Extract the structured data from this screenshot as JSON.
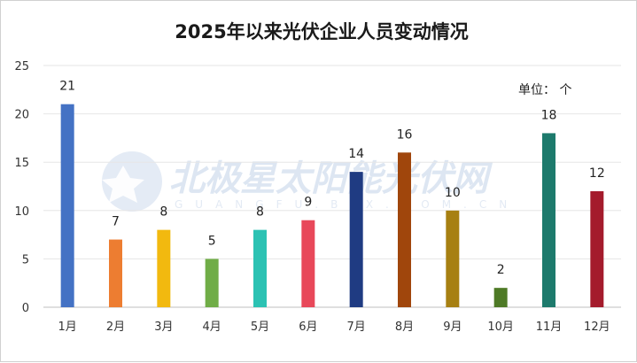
{
  "chart_data": {
    "type": "bar",
    "title": "2025年以来光伏企业人员变动情况",
    "unit_label": "单位：  个",
    "categories": [
      "1月",
      "2月",
      "3月",
      "4月",
      "5月",
      "6月",
      "7月",
      "8月",
      "9月",
      "10月",
      "11月",
      "12月"
    ],
    "values": [
      21,
      7,
      8,
      5,
      8,
      9,
      14,
      16,
      10,
      2,
      18,
      12
    ],
    "colors": [
      "#4472c4",
      "#ed7d31",
      "#f2b90f",
      "#70ad47",
      "#2cc2b3",
      "#e8485a",
      "#1f3b82",
      "#a0460c",
      "#a78012",
      "#4e7a26",
      "#1d7a6c",
      "#a41b2c"
    ],
    "ylim": [
      0,
      25
    ],
    "yticks": [
      0,
      5,
      10,
      15,
      20,
      25
    ],
    "grid": true,
    "legend": "none"
  },
  "watermark": {
    "text": "北极星太阳能光伏网",
    "subtext": "GUANGFU.BJX.COM.CN",
    "logo": "polaris-star-logo"
  }
}
